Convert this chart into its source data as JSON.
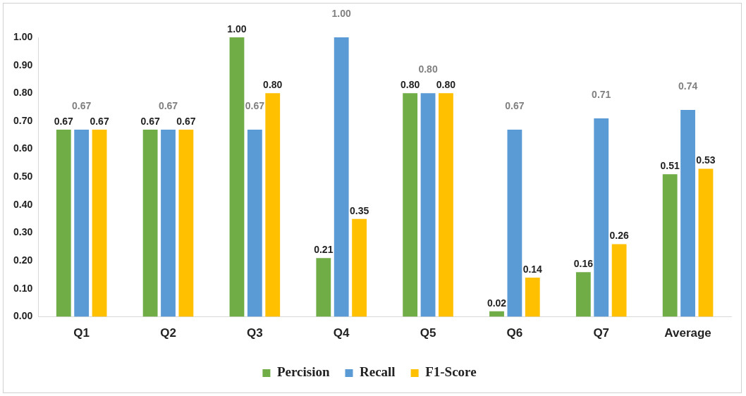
{
  "chart_data": {
    "type": "bar",
    "categories": [
      "Q1",
      "Q2",
      "Q3",
      "Q4",
      "Q5",
      "Q6",
      "Q7",
      "Average"
    ],
    "series": [
      {
        "name": "Percision",
        "color": "#70ad47",
        "values": [
          0.67,
          0.67,
          1.0,
          0.21,
          0.8,
          0.02,
          0.16,
          0.51
        ],
        "value_labels": [
          "0.67",
          "0.67",
          "1.00",
          "0.21",
          "0.80",
          "0.02",
          "0.16",
          "0.51"
        ]
      },
      {
        "name": "Recall",
        "color": "#5b9bd5",
        "values": [
          0.67,
          0.67,
          0.67,
          1.0,
          0.8,
          0.67,
          0.71,
          0.74
        ],
        "value_labels": [
          "0.67",
          "0.67",
          "0.67",
          "1.00",
          "0.80",
          "0.67",
          "0.71",
          "0.74"
        ]
      },
      {
        "name": "F1-Score",
        "color": "#ffc000",
        "values": [
          0.67,
          0.67,
          0.8,
          0.35,
          0.8,
          0.14,
          0.26,
          0.53
        ],
        "value_labels": [
          "0.67",
          "0.67",
          "0.80",
          "0.35",
          "0.80",
          "0.14",
          "0.26",
          "0.53"
        ]
      }
    ],
    "ylim": [
      0,
      1
    ],
    "yticks": [
      {
        "value": 0,
        "label": "0.00"
      },
      {
        "value": 0.1,
        "label": "0.10"
      },
      {
        "value": 0.2,
        "label": "0.20"
      },
      {
        "value": 0.3,
        "label": "0.30"
      },
      {
        "value": 0.4,
        "label": "0.40"
      },
      {
        "value": 0.5,
        "label": "0.50"
      },
      {
        "value": 0.6,
        "label": "0.60"
      },
      {
        "value": 0.7,
        "label": "0.70"
      },
      {
        "value": 0.8,
        "label": "0.80"
      },
      {
        "value": 0.9,
        "label": "0.90"
      },
      {
        "value": 1,
        "label": "1.00"
      }
    ],
    "grid": false,
    "legend": "bottom"
  }
}
